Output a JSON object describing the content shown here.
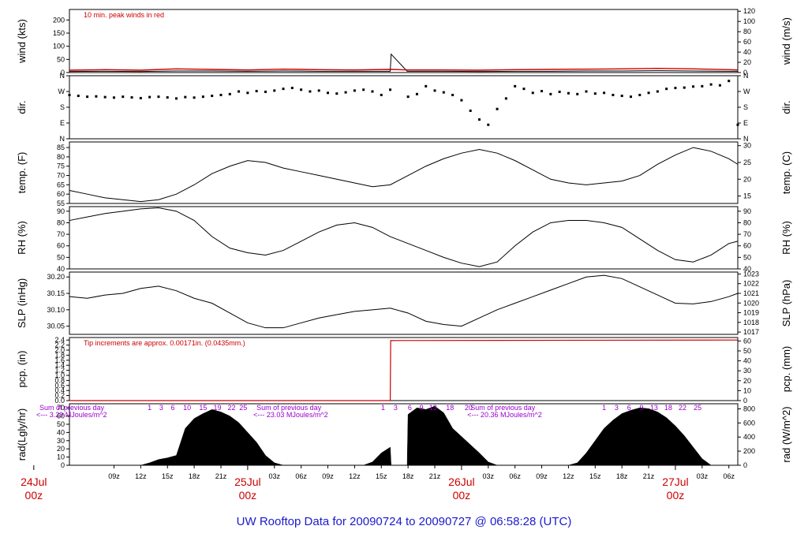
{
  "title": "UW Rooftop Data for 20090724  to  20090727 @ 06:58:28  (UTC)",
  "colors": {
    "annotation": "#cc0000",
    "title": "#1a1acc",
    "radiation_note": "#9900cc",
    "fill": "#000000"
  },
  "chart_data": {
    "type": "line",
    "x_unit": "hours since 2009-07-24 00z",
    "xlim": [
      4,
      79
    ],
    "x_ticks": [
      {
        "x": 9,
        "label": "09z"
      },
      {
        "x": 12,
        "label": "12z"
      },
      {
        "x": 15,
        "label": "15z"
      },
      {
        "x": 18,
        "label": "18z"
      },
      {
        "x": 21,
        "label": "21z"
      },
      {
        "x": 27,
        "label": "03z"
      },
      {
        "x": 30,
        "label": "06z"
      },
      {
        "x": 33,
        "label": "09z"
      },
      {
        "x": 36,
        "label": "12z"
      },
      {
        "x": 39,
        "label": "15z"
      },
      {
        "x": 42,
        "label": "18z"
      },
      {
        "x": 45,
        "label": "21z"
      },
      {
        "x": 51,
        "label": "03z"
      },
      {
        "x": 54,
        "label": "06z"
      },
      {
        "x": 57,
        "label": "09z"
      },
      {
        "x": 60,
        "label": "12z"
      },
      {
        "x": 63,
        "label": "15z"
      },
      {
        "x": 66,
        "label": "18z"
      },
      {
        "x": 69,
        "label": "21z"
      },
      {
        "x": 75,
        "label": "03z"
      },
      {
        "x": 78,
        "label": "06z"
      }
    ],
    "day_labels": [
      {
        "x": 0,
        "day": "24Jul",
        "hour": "00z"
      },
      {
        "x": 24,
        "day": "25Jul",
        "hour": "00z"
      },
      {
        "x": 48,
        "day": "26Jul",
        "hour": "00z"
      },
      {
        "x": 72,
        "day": "27Jul",
        "hour": "00z"
      }
    ],
    "panels": [
      {
        "id": "wind",
        "ylabel_left": "wind (kts)",
        "ylabel_right": "wind (m/s)",
        "ylim": [
          0,
          240
        ],
        "left_ticks": [
          0,
          50,
          100,
          150,
          200
        ],
        "right_scale": 0.5144,
        "right_ticks": [
          0,
          20,
          40,
          60,
          80,
          100,
          120
        ],
        "annotation": "10 min. peak winds in red",
        "series": [
          {
            "role": "mean",
            "x": [
              4,
              8,
              12,
              16,
              20,
              24,
              28,
              32,
              36,
              40,
              40.1,
              41.9,
              42,
              46,
              50,
              54,
              58,
              62,
              66,
              70,
              74,
              78,
              79
            ],
            "y": [
              4,
              5,
              4,
              6,
              6,
              5,
              6,
              5,
              5,
              5,
              70,
              5,
              5,
              5,
              4,
              5,
              5,
              6,
              6,
              7,
              6,
              5,
              5
            ]
          },
          {
            "role": "peak",
            "x": [
              4,
              8,
              12,
              16,
              20,
              24,
              28,
              32,
              36,
              40,
              42,
              46,
              50,
              54,
              58,
              62,
              66,
              70,
              74,
              78,
              79
            ],
            "y": [
              9,
              11,
              9,
              14,
              12,
              10,
              13,
              11,
              10,
              12,
              10,
              10,
              9,
              11,
              12,
              13,
              14,
              16,
              14,
              11,
              10
            ]
          }
        ]
      },
      {
        "id": "dir",
        "ylabel_left": "dir.",
        "ylabel_right": "dir.",
        "ylim": [
          0,
          360
        ],
        "tick_values": [
          0,
          90,
          180,
          270,
          360
        ],
        "tick_labels": [
          "N",
          "E",
          "S",
          "W",
          "N"
        ],
        "x": [
          4,
          5,
          6,
          7,
          8,
          9,
          10,
          11,
          12,
          13,
          14,
          15,
          16,
          17,
          18,
          19,
          20,
          21,
          22,
          23,
          24,
          25,
          26,
          27,
          28,
          29,
          30,
          31,
          32,
          33,
          34,
          35,
          36,
          37,
          38,
          39,
          40,
          42,
          43,
          44,
          45,
          46,
          47,
          48,
          49,
          50,
          51,
          52,
          53,
          54,
          55,
          56,
          57,
          58,
          59,
          60,
          61,
          62,
          63,
          64,
          65,
          66,
          67,
          68,
          69,
          70,
          71,
          72,
          73,
          74,
          75,
          76,
          77,
          78,
          79
        ],
        "y": [
          250,
          245,
          240,
          242,
          238,
          235,
          240,
          236,
          232,
          238,
          240,
          236,
          230,
          238,
          235,
          240,
          245,
          250,
          255,
          270,
          262,
          272,
          268,
          275,
          285,
          290,
          280,
          270,
          275,
          262,
          258,
          265,
          275,
          280,
          270,
          250,
          280,
          240,
          255,
          300,
          275,
          265,
          250,
          220,
          160,
          110,
          80,
          170,
          230,
          300,
          285,
          262,
          272,
          255,
          268,
          260,
          255,
          270,
          258,
          262,
          250,
          245,
          240,
          250,
          262,
          270,
          285,
          290,
          292,
          298,
          300,
          310,
          305,
          330,
          80
        ]
      },
      {
        "id": "temp",
        "ylabel_left": "temp. (F)",
        "ylabel_right": "temp. (C)",
        "ylim": [
          55,
          88
        ],
        "left_ticks": [
          55,
          60,
          65,
          70,
          75,
          80,
          85
        ],
        "right_scale": "FtoC",
        "right_ticks": [
          15,
          20,
          25,
          30
        ],
        "x": [
          4,
          6,
          8,
          10,
          12,
          14,
          16,
          18,
          20,
          22,
          24,
          26,
          28,
          30,
          32,
          34,
          36,
          38,
          40,
          42,
          44,
          46,
          48,
          50,
          52,
          54,
          56,
          58,
          60,
          62,
          64,
          66,
          68,
          70,
          72,
          74,
          76,
          78,
          79
        ],
        "y": [
          62,
          60,
          58,
          57,
          56,
          57,
          60,
          65,
          71,
          75,
          78,
          77,
          74,
          72,
          70,
          68,
          66,
          64,
          65,
          70,
          75,
          79,
          82,
          84,
          82,
          78,
          73,
          68,
          66,
          65,
          66,
          67,
          70,
          76,
          81,
          85,
          83,
          79,
          76
        ]
      },
      {
        "id": "rh",
        "ylabel_left": "RH (%)",
        "ylabel_right": "RH (%)",
        "ylim": [
          40,
          94
        ],
        "left_ticks": [
          40,
          50,
          60,
          70,
          80,
          90
        ],
        "right_ticks": [
          40,
          50,
          60,
          70,
          80,
          90
        ],
        "x": [
          4,
          6,
          8,
          10,
          12,
          14,
          16,
          18,
          20,
          22,
          24,
          26,
          28,
          30,
          32,
          34,
          36,
          38,
          40,
          42,
          44,
          46,
          48,
          50,
          52,
          54,
          56,
          58,
          60,
          62,
          64,
          66,
          68,
          70,
          72,
          74,
          76,
          78,
          79
        ],
        "y": [
          82,
          85,
          88,
          90,
          92,
          93,
          90,
          82,
          68,
          58,
          54,
          52,
          56,
          64,
          72,
          78,
          80,
          76,
          68,
          62,
          56,
          50,
          45,
          42,
          46,
          60,
          72,
          80,
          82,
          82,
          80,
          76,
          66,
          56,
          48,
          46,
          52,
          62,
          64
        ]
      },
      {
        "id": "slp",
        "ylabel_left": "SLP (inHg)",
        "ylabel_right": "SLP (hPa)",
        "ylim": [
          30.025,
          30.215
        ],
        "left_ticks": [
          30.05,
          30.1,
          30.15,
          30.2
        ],
        "right_scale": "inHgToHpa",
        "right_ticks": [
          1017,
          1018,
          1019,
          1020,
          1021,
          1022,
          1023
        ],
        "x": [
          4,
          6,
          8,
          10,
          12,
          14,
          16,
          18,
          20,
          22,
          24,
          26,
          28,
          30,
          32,
          34,
          36,
          38,
          40,
          42,
          44,
          46,
          48,
          50,
          52,
          54,
          56,
          58,
          60,
          62,
          64,
          66,
          68,
          70,
          72,
          74,
          76,
          78,
          79
        ],
        "y": [
          30.14,
          30.135,
          30.145,
          30.15,
          30.165,
          30.172,
          30.158,
          30.135,
          30.12,
          30.09,
          30.06,
          30.045,
          30.045,
          30.06,
          30.075,
          30.085,
          30.095,
          30.1,
          30.105,
          30.09,
          30.065,
          30.055,
          30.05,
          30.075,
          30.1,
          30.12,
          30.14,
          30.16,
          30.18,
          30.2,
          30.205,
          30.195,
          30.17,
          30.145,
          30.12,
          30.118,
          30.125,
          30.14,
          30.15
        ]
      },
      {
        "id": "pcp",
        "ylabel_left": "pcp. (in)",
        "ylabel_right": "pcp. (mm)",
        "ylim": [
          0,
          2.5
        ],
        "left_ticks": [
          0.0,
          0.2,
          0.4,
          0.6,
          0.8,
          1.0,
          1.2,
          1.4,
          1.6,
          1.8,
          2.0,
          2.2,
          2.4
        ],
        "right_scale": 25.4,
        "right_ticks": [
          0,
          10,
          20,
          30,
          40,
          50,
          60
        ],
        "annotation": "Tip increments are approx. 0.00171in. (0.0435mm.)",
        "x": [
          4,
          40,
          40.05,
          79
        ],
        "y": [
          0,
          0,
          2.38,
          2.4
        ]
      },
      {
        "id": "rad",
        "ylabel_left": "rad(Lgly/hr)",
        "ylabel_right": "rad (W/m^2)",
        "ylim": [
          0,
          75
        ],
        "left_ticks": [
          0,
          10,
          20,
          30,
          40,
          50,
          60,
          70
        ],
        "right_scale": 11.63,
        "right_ticks": [
          0,
          200,
          400,
          600,
          800
        ],
        "x": [
          4,
          10,
          12,
          13,
          14,
          15,
          16,
          17,
          18,
          19,
          20,
          21,
          22,
          23,
          24,
          25,
          26,
          27,
          28,
          36,
          37,
          38,
          39,
          40,
          40.1,
          41.9,
          42,
          43,
          44,
          45,
          46,
          47,
          48,
          49,
          50,
          51,
          52,
          60,
          61,
          62,
          63,
          64,
          65,
          66,
          67,
          68,
          69,
          70,
          71,
          72,
          73,
          74,
          75,
          76,
          79
        ],
        "y": [
          0,
          0,
          0,
          3,
          7,
          9,
          12,
          45,
          57,
          63,
          68,
          65,
          60,
          52,
          40,
          28,
          12,
          3,
          0,
          0,
          0,
          4,
          15,
          22,
          0,
          0,
          62,
          70,
          68,
          72,
          64,
          45,
          35,
          25,
          15,
          4,
          0,
          0,
          3,
          15,
          30,
          45,
          55,
          63,
          67,
          70,
          69,
          65,
          58,
          48,
          36,
          22,
          8,
          0,
          0
        ],
        "annotations": [
          {
            "x": 1,
            "line1": "Sum of previous day",
            "line2": "<--- 3.29 MJoules/m^2"
          },
          {
            "x": 25,
            "line1": "Sum of previous day",
            "line2": "<--- 23.03 MJoules/m^2"
          },
          {
            "x": 49,
            "line1": "Sum of previous day",
            "line2": "<--- 20.36 MJoules/m^2"
          }
        ],
        "hour_marks": [
          {
            "x": 13,
            "label": "1"
          },
          {
            "x": 14.3,
            "label": "3"
          },
          {
            "x": 15.6,
            "label": "6"
          },
          {
            "x": 17.2,
            "label": "10"
          },
          {
            "x": 19,
            "label": "15"
          },
          {
            "x": 20.6,
            "label": "19"
          },
          {
            "x": 22.2,
            "label": "22"
          },
          {
            "x": 23.5,
            "label": "25"
          },
          {
            "x": 39.2,
            "label": "1"
          },
          {
            "x": 40.6,
            "label": "3"
          },
          {
            "x": 42.2,
            "label": "6"
          },
          {
            "x": 43.5,
            "label": "9"
          },
          {
            "x": 44.8,
            "label": "13"
          },
          {
            "x": 46.7,
            "label": "18"
          },
          {
            "x": 48.8,
            "label": "20"
          },
          {
            "x": 64,
            "label": "1"
          },
          {
            "x": 65.4,
            "label": "3"
          },
          {
            "x": 66.8,
            "label": "6"
          },
          {
            "x": 68.2,
            "label": "9"
          },
          {
            "x": 69.6,
            "label": "13"
          },
          {
            "x": 71.2,
            "label": "18"
          },
          {
            "x": 72.8,
            "label": "22"
          },
          {
            "x": 74.5,
            "label": "25"
          }
        ]
      }
    ]
  }
}
